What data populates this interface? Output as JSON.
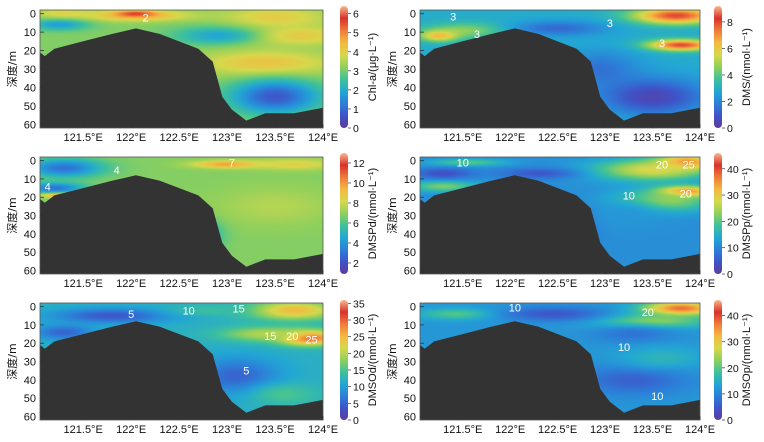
{
  "shared": {
    "x_tick_labels": [
      "121.5°E",
      "122°E",
      "122.5°E",
      "123°E",
      "123.5°E",
      "124°E"
    ],
    "x_tick_values": [
      121.5,
      122.0,
      122.5,
      123.0,
      123.5,
      124.0
    ],
    "y_tick_labels": [
      "0",
      "10",
      "20",
      "30",
      "40",
      "50",
      "60"
    ],
    "y_tick_values": [
      0,
      10,
      20,
      30,
      40,
      50,
      60
    ],
    "ylabel": "深度/m",
    "xlim": [
      121.05,
      124.0
    ],
    "ylim": [
      62,
      -2
    ],
    "colorscale": [
      "#5f3b9b",
      "#3f53c8",
      "#2c7fd8",
      "#22a7d4",
      "#3ec19b",
      "#8fd05c",
      "#d7d84c",
      "#f4b940",
      "#ef7a3a",
      "#d9312c",
      "#f8b98c"
    ],
    "seabed_color": "#333333",
    "seabed_profile": [
      [
        121.05,
        21
      ],
      [
        121.1,
        23
      ],
      [
        121.2,
        19
      ],
      [
        121.5,
        15
      ],
      [
        121.8,
        11
      ],
      [
        122.05,
        8
      ],
      [
        122.3,
        11
      ],
      [
        122.7,
        19
      ],
      [
        122.85,
        26
      ],
      [
        122.95,
        45
      ],
      [
        123.05,
        52
      ],
      [
        123.2,
        58
      ],
      [
        123.4,
        54
      ],
      [
        123.7,
        54
      ],
      [
        124.0,
        51
      ]
    ]
  },
  "chart_data": [
    {
      "type": "heatmap",
      "panel": "chl-a",
      "colorbar_label": "Chl-a/(μg·L⁻¹)",
      "colorbar_ticks": [
        "0",
        "1",
        "2",
        "3",
        "4",
        "5",
        "6"
      ],
      "colorbar_values": [
        0,
        1,
        2,
        3,
        4,
        5,
        6
      ],
      "vmin": 0,
      "vmax": 6.4,
      "background_value": 3.1,
      "blobs": [
        {
          "x": 122.05,
          "y": 1,
          "rx": 0.55,
          "ry": 3,
          "v": 4.6
        },
        {
          "x": 122.05,
          "y": 0,
          "rx": 0.2,
          "ry": 1.5,
          "v": 5.7
        },
        {
          "x": 121.3,
          "y": 0,
          "rx": 0.3,
          "ry": 3,
          "v": 4.0
        },
        {
          "x": 121.25,
          "y": 6,
          "rx": 0.3,
          "ry": 3,
          "v": 1.8
        },
        {
          "x": 123.5,
          "y": 2,
          "rx": 0.55,
          "ry": 6,
          "v": 4.1
        },
        {
          "x": 123.7,
          "y": 12,
          "rx": 0.6,
          "ry": 5,
          "v": 4.2
        },
        {
          "x": 122.9,
          "y": 12,
          "rx": 0.45,
          "ry": 5,
          "v": 1.9
        },
        {
          "x": 123.4,
          "y": 27,
          "rx": 0.7,
          "ry": 7,
          "v": 4.3
        },
        {
          "x": 123.5,
          "y": 45,
          "rx": 0.45,
          "ry": 9,
          "v": 0.7
        }
      ],
      "contour_labels": [
        {
          "text": "2",
          "x": 122.15,
          "y": 2
        }
      ]
    },
    {
      "type": "heatmap",
      "panel": "dms",
      "colorbar_label": "DMS/(nmol·L⁻¹)",
      "colorbar_ticks": [
        "0",
        "2",
        "4",
        "6",
        "8"
      ],
      "colorbar_values": [
        0,
        2,
        4,
        6,
        8
      ],
      "vmin": 0,
      "vmax": 9.2,
      "background_value": 2.9,
      "blobs": [
        {
          "x": 123.75,
          "y": 1,
          "rx": 0.45,
          "ry": 4.5,
          "v": 8.0
        },
        {
          "x": 123.8,
          "y": 17,
          "rx": 0.35,
          "ry": 3,
          "v": 8.0
        },
        {
          "x": 121.55,
          "y": 9,
          "rx": 0.45,
          "ry": 4,
          "v": 4.6
        },
        {
          "x": 121.25,
          "y": 12,
          "rx": 0.2,
          "ry": 3,
          "v": 6.4
        },
        {
          "x": 122.5,
          "y": 8,
          "rx": 0.5,
          "ry": 4,
          "v": 1.4
        },
        {
          "x": 122.95,
          "y": 30,
          "rx": 0.4,
          "ry": 10,
          "v": 1.6
        },
        {
          "x": 123.5,
          "y": 45,
          "rx": 0.55,
          "ry": 10,
          "v": 0.5
        }
      ],
      "contour_labels": [
        {
          "text": "3",
          "x": 121.4,
          "y": 1.5
        },
        {
          "text": "3",
          "x": 121.65,
          "y": 11
        },
        {
          "text": "3",
          "x": 123.05,
          "y": 5
        },
        {
          "text": "3",
          "x": 123.6,
          "y": 16
        }
      ]
    },
    {
      "type": "heatmap",
      "panel": "dmspd",
      "colorbar_label": "DMSPd/(nmol·L⁻¹)",
      "colorbar_ticks": [
        "2",
        "4",
        "6",
        "8",
        "10",
        "12"
      ],
      "colorbar_values": [
        2,
        4,
        6,
        8,
        10,
        12
      ],
      "vmin": 0.9,
      "vmax": 13,
      "background_value": 6.8,
      "blobs": [
        {
          "x": 121.3,
          "y": 4,
          "rx": 0.4,
          "ry": 5,
          "v": 3.0
        },
        {
          "x": 121.2,
          "y": 15,
          "rx": 0.3,
          "ry": 3,
          "v": 3.0
        },
        {
          "x": 121.3,
          "y": 19,
          "rx": 0.25,
          "ry": 1.2,
          "v": 10.5
        },
        {
          "x": 123.0,
          "y": 2,
          "rx": 0.35,
          "ry": 2,
          "v": 10.0
        },
        {
          "x": 123.7,
          "y": 2,
          "rx": 0.45,
          "ry": 3,
          "v": 8.5
        },
        {
          "x": 122.75,
          "y": 40,
          "rx": 0.2,
          "ry": 8,
          "v": 4.5
        },
        {
          "x": 123.5,
          "y": 25,
          "rx": 0.6,
          "ry": 10,
          "v": 7.6
        }
      ],
      "contour_labels": [
        {
          "text": "4",
          "x": 121.85,
          "y": 5
        },
        {
          "text": "4",
          "x": 121.13,
          "y": 14
        },
        {
          "text": "7",
          "x": 123.05,
          "y": 1
        }
      ]
    },
    {
      "type": "heatmap",
      "panel": "dmspp",
      "colorbar_label": "DMSPp/(nmol·L⁻¹)",
      "colorbar_ticks": [
        "0",
        "10",
        "20",
        "30",
        "40"
      ],
      "colorbar_values": [
        0,
        10,
        20,
        30,
        40
      ],
      "vmin": 0,
      "vmax": 46,
      "background_value": 11,
      "blobs": [
        {
          "x": 123.85,
          "y": 1,
          "rx": 0.3,
          "ry": 4,
          "v": 40
        },
        {
          "x": 123.5,
          "y": 5,
          "rx": 0.6,
          "ry": 6,
          "v": 28
        },
        {
          "x": 123.85,
          "y": 17,
          "rx": 0.3,
          "ry": 3,
          "v": 40
        },
        {
          "x": 123.6,
          "y": 22,
          "rx": 0.5,
          "ry": 6,
          "v": 25
        },
        {
          "x": 121.55,
          "y": 1,
          "rx": 0.4,
          "ry": 2,
          "v": 20
        },
        {
          "x": 121.3,
          "y": 14,
          "rx": 0.35,
          "ry": 3,
          "v": 22
        },
        {
          "x": 121.3,
          "y": 7,
          "rx": 0.3,
          "ry": 3,
          "v": 4
        },
        {
          "x": 122.3,
          "y": 7,
          "rx": 0.4,
          "ry": 3,
          "v": 5
        },
        {
          "x": 122.75,
          "y": 35,
          "rx": 0.2,
          "ry": 10,
          "v": 7
        },
        {
          "x": 123.2,
          "y": 30,
          "rx": 0.45,
          "ry": 9,
          "v": 12
        }
      ],
      "contour_labels": [
        {
          "text": "10",
          "x": 121.5,
          "y": 1
        },
        {
          "text": "20",
          "x": 123.6,
          "y": 2
        },
        {
          "text": "25",
          "x": 123.88,
          "y": 2
        },
        {
          "text": "10",
          "x": 123.25,
          "y": 19
        },
        {
          "text": "20",
          "x": 123.85,
          "y": 18
        }
      ]
    },
    {
      "type": "heatmap",
      "panel": "dmsod",
      "colorbar_label": "DMSOd/(nmol·L⁻¹)",
      "colorbar_ticks": [
        "0",
        "5",
        "10",
        "15",
        "20",
        "25",
        "30",
        "35"
      ],
      "colorbar_values": [
        0,
        5,
        10,
        15,
        20,
        25,
        30,
        35
      ],
      "vmin": 0,
      "vmax": 36,
      "background_value": 12,
      "blobs": [
        {
          "x": 123.7,
          "y": 2,
          "rx": 0.45,
          "ry": 5,
          "v": 25
        },
        {
          "x": 123.85,
          "y": 17,
          "rx": 0.3,
          "ry": 4,
          "v": 32
        },
        {
          "x": 123.4,
          "y": 15,
          "rx": 0.45,
          "ry": 4,
          "v": 20
        },
        {
          "x": 121.8,
          "y": 5,
          "rx": 0.6,
          "ry": 4,
          "v": 4
        },
        {
          "x": 121.3,
          "y": 14,
          "rx": 0.3,
          "ry": 4,
          "v": 5
        },
        {
          "x": 122.8,
          "y": 2,
          "rx": 0.4,
          "ry": 3,
          "v": 14
        },
        {
          "x": 123.1,
          "y": 38,
          "rx": 0.45,
          "ry": 10,
          "v": 5
        },
        {
          "x": 123.6,
          "y": 48,
          "rx": 0.35,
          "ry": 6,
          "v": 15
        }
      ],
      "contour_labels": [
        {
          "text": "5",
          "x": 122.0,
          "y": 4
        },
        {
          "text": "10",
          "x": 122.6,
          "y": 2
        },
        {
          "text": "15",
          "x": 123.12,
          "y": 1
        },
        {
          "text": "15",
          "x": 123.45,
          "y": 16
        },
        {
          "text": "20",
          "x": 123.68,
          "y": 16
        },
        {
          "text": "25",
          "x": 123.88,
          "y": 18
        },
        {
          "text": "5",
          "x": 123.2,
          "y": 35
        }
      ]
    },
    {
      "type": "heatmap",
      "panel": "dmsop",
      "colorbar_label": "DMSOp/(nmol·L⁻¹)",
      "colorbar_ticks": [
        "0",
        "10",
        "20",
        "30",
        "40"
      ],
      "colorbar_values": [
        0,
        10,
        20,
        30,
        40
      ],
      "vmin": 0,
      "vmax": 46,
      "background_value": 12,
      "blobs": [
        {
          "x": 123.8,
          "y": 1,
          "rx": 0.4,
          "ry": 4,
          "v": 38
        },
        {
          "x": 123.5,
          "y": 8,
          "rx": 0.55,
          "ry": 4,
          "v": 24
        },
        {
          "x": 121.45,
          "y": 4,
          "rx": 0.4,
          "ry": 3,
          "v": 20
        },
        {
          "x": 122.45,
          "y": 4,
          "rx": 0.55,
          "ry": 4,
          "v": 5
        },
        {
          "x": 123.3,
          "y": 15,
          "rx": 0.45,
          "ry": 5,
          "v": 8
        },
        {
          "x": 123.3,
          "y": 40,
          "rx": 0.55,
          "ry": 8,
          "v": 6
        },
        {
          "x": 123.6,
          "y": 28,
          "rx": 0.45,
          "ry": 6,
          "v": 16
        }
      ],
      "contour_labels": [
        {
          "text": "10",
          "x": 122.05,
          "y": 0.5
        },
        {
          "text": "20",
          "x": 123.45,
          "y": 3
        },
        {
          "text": "10",
          "x": 123.2,
          "y": 22
        },
        {
          "text": "10",
          "x": 123.55,
          "y": 49
        }
      ]
    }
  ]
}
